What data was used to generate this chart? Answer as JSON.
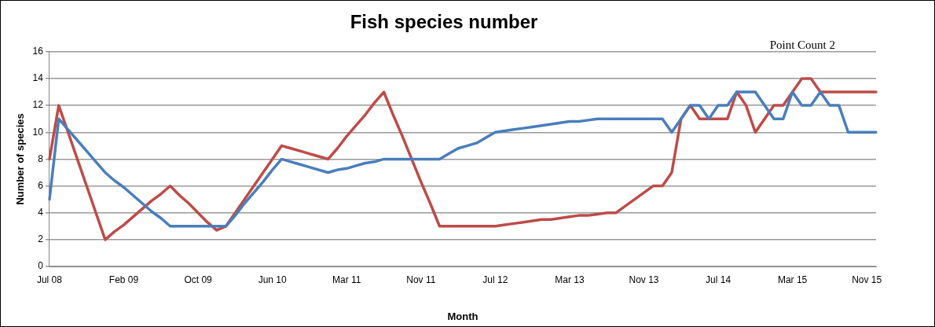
{
  "chart_data": {
    "type": "line",
    "title": "Fish species number",
    "xlabel": "Month",
    "ylabel": "Number of species",
    "annotations": [
      "Point Count 2"
    ],
    "categories": [
      "Jul 08",
      null,
      null,
      null,
      null,
      null,
      null,
      null,
      "Feb 09",
      null,
      null,
      null,
      null,
      null,
      null,
      null,
      "Oct 09",
      null,
      null,
      null,
      null,
      null,
      null,
      null,
      "Jun 10",
      null,
      null,
      null,
      null,
      null,
      null,
      null,
      "Mar 11",
      null,
      null,
      null,
      null,
      null,
      null,
      null,
      "Nov 11",
      null,
      null,
      null,
      null,
      null,
      null,
      null,
      "Jul 12",
      null,
      null,
      null,
      null,
      null,
      null,
      null,
      "Mar 13",
      null,
      null,
      null,
      null,
      null,
      null,
      null,
      "Nov 13",
      null,
      null,
      null,
      null,
      null,
      null,
      null,
      "Jul 14",
      null,
      null,
      null,
      null,
      null,
      null,
      null,
      "Mar 15",
      null,
      null,
      null,
      null,
      null,
      null,
      null,
      "Nov 15",
      null
    ],
    "series": [
      {
        "color": "#4a7ebb",
        "values": [
          5,
          11,
          10.2,
          9.4,
          8.6,
          7.8,
          7,
          6.4,
          5.9,
          5.3,
          4.7,
          4.1,
          3.6,
          3,
          3,
          3,
          3,
          3,
          3,
          3,
          3.8,
          4.7,
          5.5,
          6.3,
          7.2,
          8,
          7.8,
          7.6,
          7.4,
          7.2,
          7,
          7.2,
          7.3,
          7.5,
          7.7,
          7.8,
          8,
          8,
          8,
          8,
          8,
          8,
          8,
          8.4,
          8.8,
          9,
          9.2,
          9.6,
          10,
          10.1,
          10.2,
          10.3,
          10.4,
          10.5,
          10.6,
          10.7,
          10.8,
          10.8,
          10.9,
          11,
          11,
          11,
          11,
          11,
          11,
          11,
          11,
          10,
          11,
          12,
          12,
          11,
          12,
          12,
          13,
          13,
          13,
          12,
          11,
          11,
          13,
          12,
          12,
          13,
          12,
          12,
          10,
          10,
          10,
          10
        ]
      },
      {
        "color": "#be4b48",
        "values": [
          8,
          12,
          10,
          8,
          6,
          4,
          2,
          2.6,
          3.1,
          3.7,
          4.3,
          4.9,
          5.4,
          6,
          5.3,
          4.7,
          4,
          3.3,
          2.7,
          3,
          4,
          5,
          6,
          7,
          8,
          9,
          8.8,
          8.6,
          8.4,
          8.2,
          8,
          8.8,
          9.7,
          10.5,
          11.3,
          12.2,
          13,
          11.3,
          9.7,
          8,
          6.3,
          4.7,
          3,
          3,
          3,
          3,
          3,
          3,
          3,
          3.1,
          3.2,
          3.3,
          3.4,
          3.5,
          3.5,
          3.6,
          3.7,
          3.8,
          3.8,
          3.9,
          4,
          4,
          4.5,
          5,
          5.5,
          6,
          6,
          7,
          11,
          12,
          11,
          11,
          11,
          11,
          13,
          12,
          10,
          11,
          12,
          12,
          13,
          14,
          14,
          13,
          13,
          13,
          13,
          13,
          13,
          13
        ]
      }
    ],
    "ylim": [
      0,
      16
    ],
    "yticks": [
      0,
      2,
      4,
      6,
      8,
      10,
      12,
      14,
      16
    ],
    "grid": "y",
    "legend": false,
    "marker": "none",
    "line_style": "solid"
  }
}
